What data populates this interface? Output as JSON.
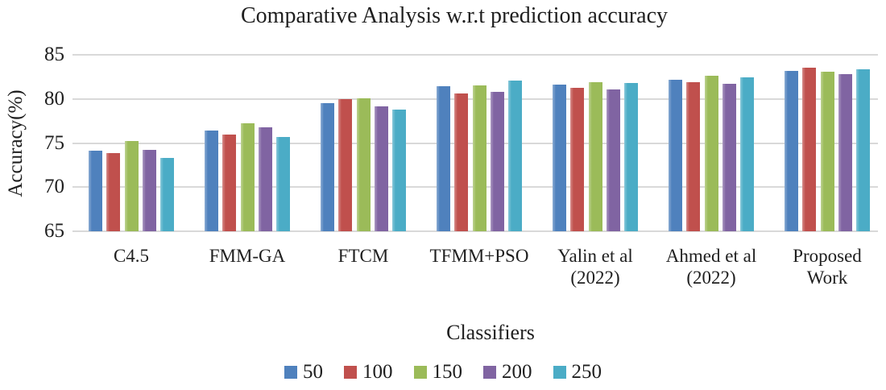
{
  "chart_data": {
    "type": "bar",
    "title": "Comparative Analysis w.r.t prediction accuracy",
    "xlabel": "Classifiers",
    "ylabel": "Accuracy(%)",
    "ylim": [
      65,
      85
    ],
    "yticks": [
      65,
      70,
      75,
      80,
      85
    ],
    "grid": true,
    "legend_position": "bottom",
    "categories": [
      "C4.5",
      "FMM-GA",
      "FTCM",
      "TFMM+PSO",
      "Yalin et al (2022)",
      "Ahmed et al (2022)",
      "Proposed Work"
    ],
    "category_label_lines": [
      [
        "C4.5"
      ],
      [
        "FMM-GA"
      ],
      [
        "FTCM"
      ],
      [
        "TFMM+PSO"
      ],
      [
        "Yalin et al",
        "(2022)"
      ],
      [
        "Ahmed et al",
        "(2022)"
      ],
      [
        "Proposed",
        "Work"
      ]
    ],
    "series": [
      {
        "name": "50",
        "color": "#4F81BD",
        "values": [
          74.1,
          76.4,
          79.5,
          81.4,
          81.6,
          82.2,
          83.2
        ]
      },
      {
        "name": "100",
        "color": "#C0504D",
        "values": [
          73.9,
          76.0,
          80.0,
          80.6,
          81.3,
          81.9,
          83.5
        ]
      },
      {
        "name": "150",
        "color": "#9BBB59",
        "values": [
          75.2,
          77.2,
          80.1,
          81.5,
          81.9,
          82.6,
          83.1
        ]
      },
      {
        "name": "200",
        "color": "#8064A2",
        "values": [
          74.2,
          76.8,
          79.2,
          80.8,
          81.1,
          81.7,
          82.8
        ]
      },
      {
        "name": "250",
        "color": "#4BACC6",
        "values": [
          73.3,
          75.7,
          78.8,
          82.1,
          81.8,
          82.4,
          83.4
        ]
      }
    ],
    "colors": {
      "gridline": "#D9D9D9",
      "text": "#1F1F1F"
    }
  }
}
